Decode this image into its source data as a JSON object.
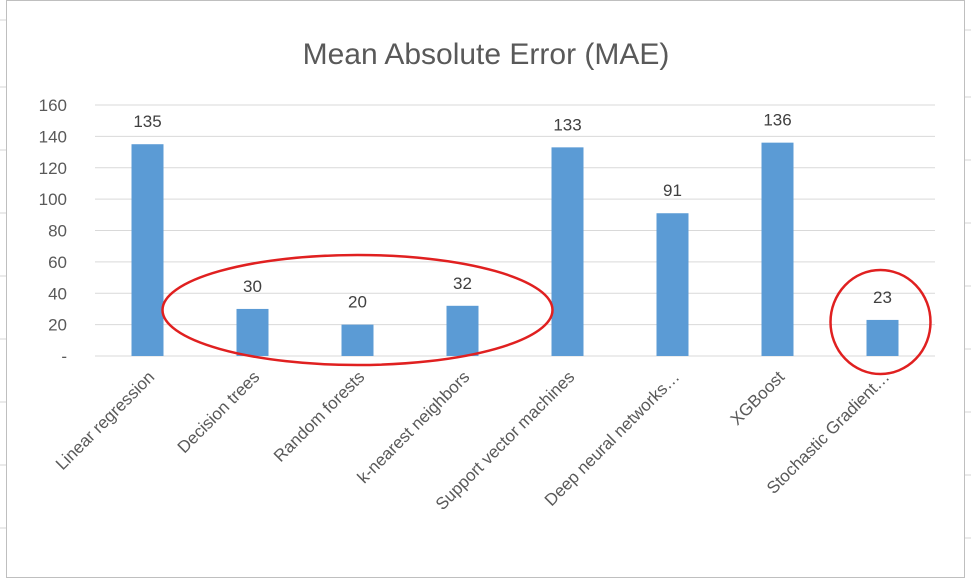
{
  "chart_data": {
    "type": "bar",
    "title": "Mean Absolute Error (MAE)",
    "categories": [
      "Linear regression",
      "Decision trees",
      "Random forests",
      "k-nearest neighbors",
      "Support vector machines",
      "Deep neural networks…",
      "XGBoost",
      "Stochastic Gradient…"
    ],
    "values": [
      135,
      30,
      20,
      32,
      133,
      91,
      136,
      23
    ],
    "data_labels": [
      "135",
      "30",
      "20",
      "32",
      "133",
      "91",
      "136",
      "23"
    ],
    "ylim": [
      0,
      160
    ],
    "yticks": [
      0,
      20,
      40,
      60,
      80,
      100,
      120,
      140,
      160
    ],
    "ytick_labels": [
      "-",
      "20",
      "40",
      "60",
      "80",
      "100",
      "120",
      "140",
      "160"
    ],
    "grid": true,
    "legend": "none",
    "highlight_groups": [
      [
        1,
        2,
        3
      ],
      [
        7
      ]
    ]
  },
  "colors": {
    "bar": "#5b9bd5",
    "grid": "#d9d9d9",
    "highlight": "#e02020",
    "sheet_lines": "#d4d4d4",
    "chart_border": "#bfbfbf"
  }
}
